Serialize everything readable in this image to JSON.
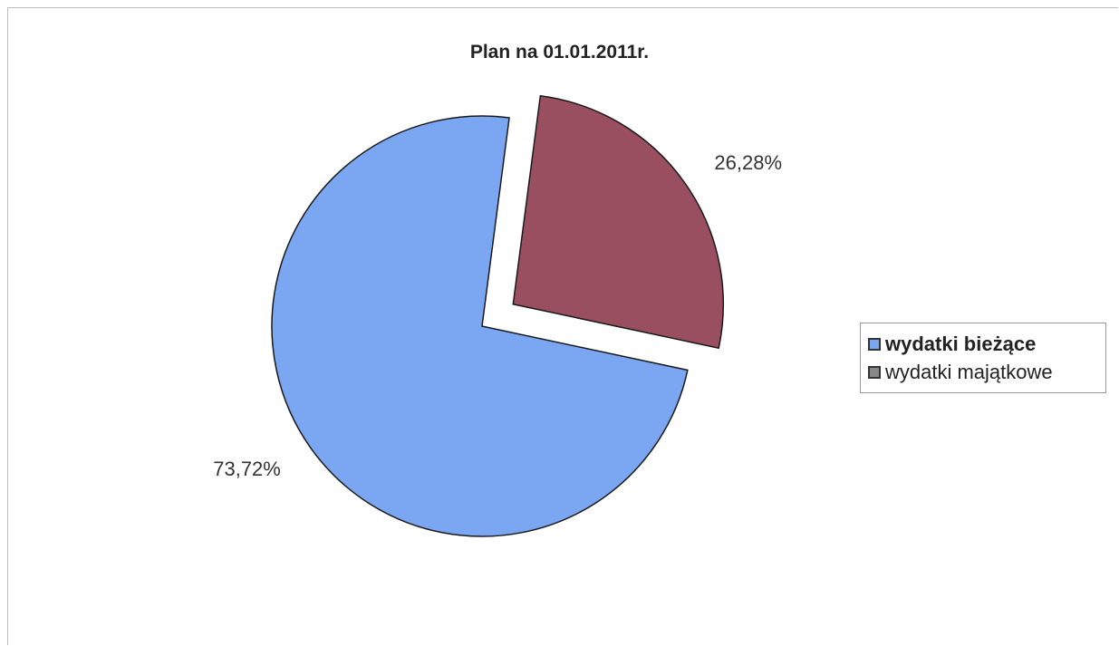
{
  "chart_data": {
    "type": "pie",
    "title": "Plan na 01.01.2011r.",
    "slices": [
      {
        "name": "wydatki bieżące",
        "value": 73.72,
        "label": "73,72%",
        "color": "#7aa6f2",
        "exploded": false
      },
      {
        "name": "wydatki majątkowe",
        "value": 26.28,
        "label": "26,28%",
        "color": "#9a4f61",
        "exploded": true
      }
    ],
    "legend_placement": "right"
  },
  "legend": {
    "items": [
      {
        "label": "wydatki bieżące",
        "swatch_color": "#7aa6f2",
        "bold": true
      },
      {
        "label": "wydatki majątkowe",
        "swatch_color": "#888888",
        "bold": false
      }
    ]
  }
}
